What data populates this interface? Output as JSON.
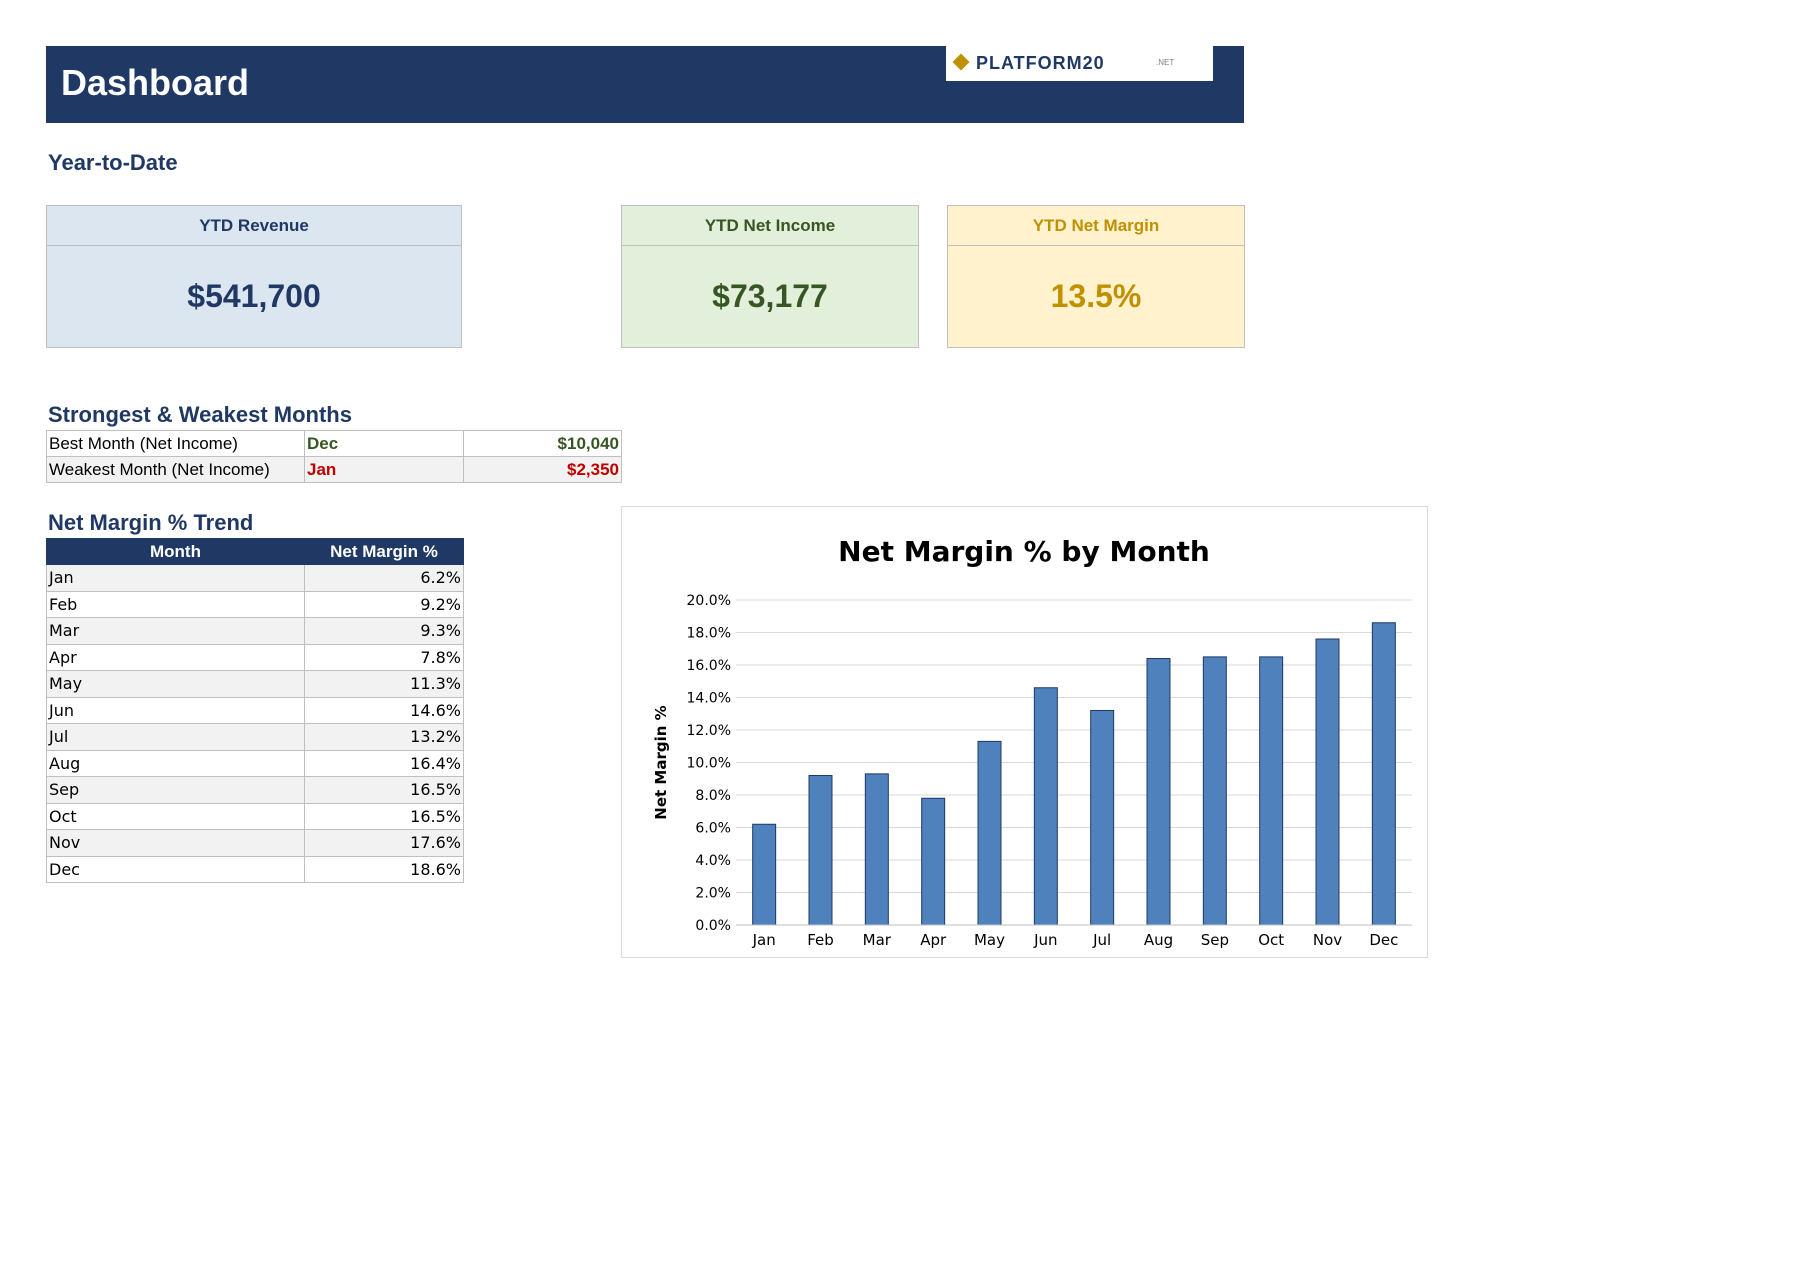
{
  "header": {
    "title": "Dashboard",
    "logo_text": "PLATFORM20",
    "logo_suffix": ".NET"
  },
  "ytd": {
    "section_title": "Year-to-Date",
    "revenue": {
      "label": "YTD Revenue",
      "value": "$541,700"
    },
    "net_income": {
      "label": "YTD Net Income",
      "value": "$73,177"
    },
    "net_margin": {
      "label": "YTD Net Margin",
      "value": "13.5%"
    }
  },
  "strong_weak": {
    "section_title": "Strongest & Weakest Months",
    "rows": [
      {
        "label": "Best Month (Net Income)",
        "month": "Dec",
        "value": "$10,040",
        "color": "#375623"
      },
      {
        "label": "Weakest Month (Net Income)",
        "month": "Jan",
        "value": "$2,350",
        "color": "#c00000"
      }
    ]
  },
  "trend": {
    "section_title": "Net Margin % Trend",
    "headers": [
      "Month",
      "Net Margin %"
    ],
    "rows": [
      [
        "Jan",
        "6.2%"
      ],
      [
        "Feb",
        "9.2%"
      ],
      [
        "Mar",
        "9.3%"
      ],
      [
        "Apr",
        "7.8%"
      ],
      [
        "May",
        "11.3%"
      ],
      [
        "Jun",
        "14.6%"
      ],
      [
        "Jul",
        "13.2%"
      ],
      [
        "Aug",
        "16.4%"
      ],
      [
        "Sep",
        "16.5%"
      ],
      [
        "Oct",
        "16.5%"
      ],
      [
        "Nov",
        "17.6%"
      ],
      [
        "Dec",
        "18.6%"
      ]
    ]
  },
  "chart_data": {
    "type": "bar",
    "title": "Net Margin % by Month",
    "xlabel": "",
    "ylabel": "Net Margin %",
    "categories": [
      "Jan",
      "Feb",
      "Mar",
      "Apr",
      "May",
      "Jun",
      "Jul",
      "Aug",
      "Sep",
      "Oct",
      "Nov",
      "Dec"
    ],
    "values": [
      6.2,
      9.2,
      9.3,
      7.8,
      11.3,
      14.6,
      13.2,
      16.4,
      16.5,
      16.5,
      17.6,
      18.6
    ],
    "ylim": [
      0,
      20
    ],
    "yticks": [
      "0.0%",
      "2.0%",
      "4.0%",
      "6.0%",
      "8.0%",
      "10.0%",
      "12.0%",
      "14.0%",
      "16.0%",
      "18.0%",
      "20.0%"
    ],
    "grid": true,
    "bar_color": "#4f81bd"
  }
}
